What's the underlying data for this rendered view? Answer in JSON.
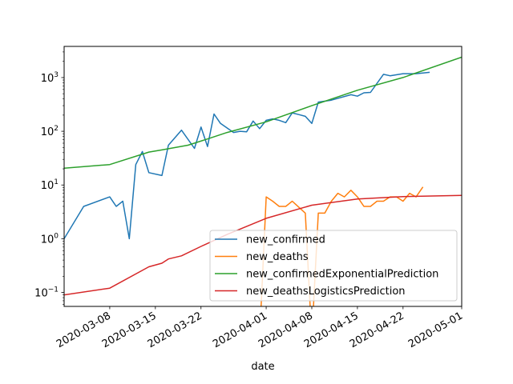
{
  "chart_data": {
    "type": "line",
    "title": "",
    "xlabel": "date",
    "ylabel": "",
    "yscale": "log",
    "ylim_exponent": [
      -1.26,
      3.58
    ],
    "xlim": [
      "2020-03-01",
      "2020-05-01"
    ],
    "x_ticks": [
      "2020-03-08",
      "2020-03-15",
      "2020-03-22",
      "2020-04-01",
      "2020-04-08",
      "2020-04-15",
      "2020-04-22",
      "2020-05-01"
    ],
    "y_ticks": [
      {
        "base": "10",
        "exp": "−1"
      },
      {
        "base": "10",
        "exp": "0"
      },
      {
        "base": "10",
        "exp": "1"
      },
      {
        "base": "10",
        "exp": "2"
      },
      {
        "base": "10",
        "exp": "3"
      }
    ],
    "grid": false,
    "legend_position": "lower-right",
    "series": [
      {
        "name": "new_confirmed",
        "color": "#1f77b4",
        "points": [
          [
            "2020-03-01",
            1
          ],
          [
            "2020-03-04",
            4
          ],
          [
            "2020-03-08",
            6
          ],
          [
            "2020-03-09",
            4
          ],
          [
            "2020-03-10",
            5
          ],
          [
            "2020-03-11",
            1
          ],
          [
            "2020-03-12",
            24
          ],
          [
            "2020-03-13",
            42
          ],
          [
            "2020-03-14",
            17
          ],
          [
            "2020-03-16",
            15
          ],
          [
            "2020-03-17",
            55
          ],
          [
            "2020-03-19",
            105
          ],
          [
            "2020-03-21",
            48
          ],
          [
            "2020-03-22",
            120
          ],
          [
            "2020-03-23",
            52
          ],
          [
            "2020-03-24",
            210
          ],
          [
            "2020-03-25",
            140
          ],
          [
            "2020-03-27",
            95
          ],
          [
            "2020-03-28",
            100
          ],
          [
            "2020-03-29",
            98
          ],
          [
            "2020-03-30",
            155
          ],
          [
            "2020-03-31",
            112
          ],
          [
            "2020-04-01",
            160
          ],
          [
            "2020-04-02",
            170
          ],
          [
            "2020-04-03",
            160
          ],
          [
            "2020-04-04",
            145
          ],
          [
            "2020-04-05",
            220
          ],
          [
            "2020-04-06",
            205
          ],
          [
            "2020-04-07",
            190
          ],
          [
            "2020-04-08",
            140
          ],
          [
            "2020-04-09",
            350
          ],
          [
            "2020-04-11",
            380
          ],
          [
            "2020-04-14",
            480
          ],
          [
            "2020-04-15",
            450
          ],
          [
            "2020-04-16",
            520
          ],
          [
            "2020-04-17",
            530
          ],
          [
            "2020-04-19",
            1150
          ],
          [
            "2020-04-20",
            1080
          ],
          [
            "2020-04-22",
            1180
          ],
          [
            "2020-04-24",
            1180
          ],
          [
            "2020-04-26",
            1250
          ]
        ]
      },
      {
        "name": "new_deaths",
        "color": "#ff7f0e",
        "points": [
          [
            "2020-03-26",
            0
          ],
          [
            "2020-03-27",
            0
          ],
          [
            "2020-03-28",
            0
          ],
          [
            "2020-03-29",
            0
          ],
          [
            "2020-03-30",
            0
          ],
          [
            "2020-03-31",
            0
          ],
          [
            "2020-04-01",
            6
          ],
          [
            "2020-04-02",
            5
          ],
          [
            "2020-04-03",
            4
          ],
          [
            "2020-04-04",
            4
          ],
          [
            "2020-04-05",
            5
          ],
          [
            "2020-04-07",
            3
          ],
          [
            "2020-04-08",
            0
          ],
          [
            "2020-04-09",
            3
          ],
          [
            "2020-04-10",
            3
          ],
          [
            "2020-04-11",
            5
          ],
          [
            "2020-04-12",
            7
          ],
          [
            "2020-04-13",
            6
          ],
          [
            "2020-04-14",
            8
          ],
          [
            "2020-04-15",
            6
          ],
          [
            "2020-04-16",
            4
          ],
          [
            "2020-04-17",
            4
          ],
          [
            "2020-04-18",
            5
          ],
          [
            "2020-04-19",
            5
          ],
          [
            "2020-04-20",
            6
          ],
          [
            "2020-04-21",
            6
          ],
          [
            "2020-04-22",
            5
          ],
          [
            "2020-04-23",
            7
          ],
          [
            "2020-04-24",
            6
          ],
          [
            "2020-04-25",
            9
          ]
        ]
      },
      {
        "name": "new_confirmedExponentialPrediction",
        "color": "#2ca02c",
        "points": [
          [
            "2020-03-01",
            20.5
          ],
          [
            "2020-03-08",
            24
          ],
          [
            "2020-03-14",
            41
          ],
          [
            "2020-03-16",
            45
          ],
          [
            "2020-03-20",
            55
          ],
          [
            "2020-03-23",
            72
          ],
          [
            "2020-03-26",
            95
          ],
          [
            "2020-04-01",
            150
          ],
          [
            "2020-04-08",
            300
          ],
          [
            "2020-04-15",
            580
          ],
          [
            "2020-04-22",
            1000
          ],
          [
            "2020-05-01",
            2400
          ]
        ]
      },
      {
        "name": "new_deathsLogisticsPrediction",
        "color": "#d62728",
        "points": [
          [
            "2020-03-01",
            0.09
          ],
          [
            "2020-03-08",
            0.12
          ],
          [
            "2020-03-14",
            0.3
          ],
          [
            "2020-03-16",
            0.35
          ],
          [
            "2020-03-17",
            0.42
          ],
          [
            "2020-03-19",
            0.48
          ],
          [
            "2020-03-22",
            0.72
          ],
          [
            "2020-03-26",
            1.2
          ],
          [
            "2020-04-01",
            2.4
          ],
          [
            "2020-04-08",
            4.2
          ],
          [
            "2020-04-15",
            5.5
          ],
          [
            "2020-04-22",
            6.1
          ],
          [
            "2020-05-01",
            6.4
          ]
        ]
      }
    ]
  }
}
